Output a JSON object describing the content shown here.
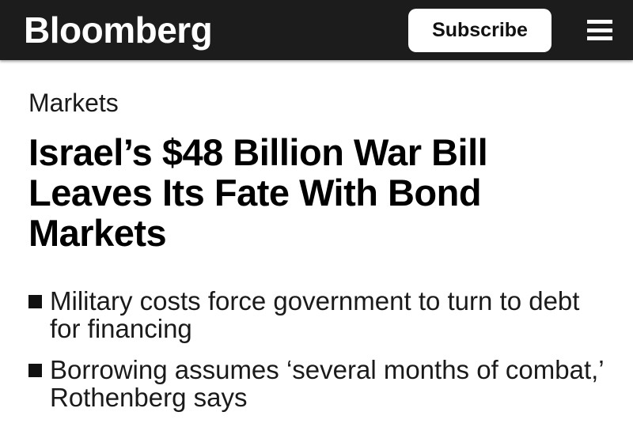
{
  "header": {
    "logo": "Bloomberg",
    "subscribe_label": "Subscribe",
    "bg_color": "#1c1c1c"
  },
  "icons": {
    "menu": "hamburger-icon",
    "bullet": "square-bullet-icon"
  },
  "article": {
    "section": "Markets",
    "headline": "Israel’s $48 Billion War Bill\nLeaves Its Fate With Bond\nMarkets",
    "bullets": [
      "Military costs force government to turn to debt\nfor financing",
      "Borrowing assumes ‘several months of combat,’\nRothenberg says"
    ]
  },
  "colors": {
    "header_bg": "#1c1c1c",
    "headline_text": "#000000",
    "body_text": "#1a1a1a",
    "button_bg": "#ffffff",
    "button_text": "#111111"
  }
}
